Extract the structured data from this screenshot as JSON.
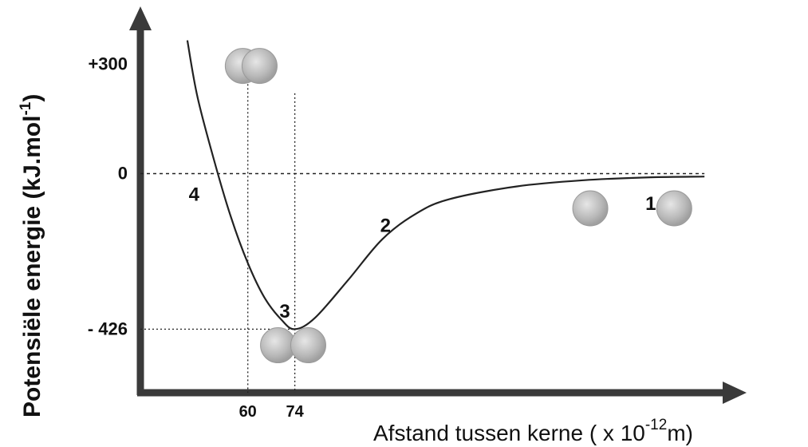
{
  "chart_data": {
    "type": "line",
    "ylabel_main": "Potensiële   energie (kJ.mol",
    "ylabel_sup": "-1",
    "ylabel_end": ")",
    "xlabel_main": "Afstand tussen kerne ( x 10",
    "xlabel_sup": "-12",
    "xlabel_end": "m)",
    "y_ticks": [
      "+300",
      "0",
      "- 426"
    ],
    "y_tick_values": [
      300,
      0,
      -426
    ],
    "x_ticks": [
      "60",
      "74"
    ],
    "x_tick_values": [
      60,
      74
    ],
    "ylim": [
      -600,
      410
    ],
    "xlim": [
      28,
      200
    ],
    "curve": {
      "x": [
        42,
        45,
        50,
        55,
        60,
        65,
        70,
        74,
        80,
        90,
        100,
        110,
        120,
        140,
        160,
        180,
        196
      ],
      "y": [
        365,
        210,
        35,
        -120,
        -245,
        -340,
        -400,
        -426,
        -395,
        -290,
        -180,
        -110,
        -70,
        -35,
        -18,
        -10,
        -8
      ]
    },
    "reference_lines": {
      "zero_line_x_end": 196,
      "min_y": -426,
      "min_x": 74,
      "x60_to_y": 300
    },
    "points": [
      {
        "label": "1",
        "x": 180,
        "y": -80
      },
      {
        "label": "2",
        "x": 101,
        "y": -140
      },
      {
        "label": "3",
        "x": 71,
        "y": -375
      },
      {
        "label": "4",
        "x": 44,
        "y": -55
      }
    ],
    "molecules": [
      {
        "name": "molecule-overlapping",
        "x1": 58.5,
        "x2": 63.5,
        "y": 295
      },
      {
        "name": "molecule-bonded",
        "x1": 69,
        "x2": 78,
        "y": -470
      },
      {
        "name": "molecule-separated",
        "x1": 162,
        "x2": 187,
        "y": -95
      }
    ],
    "colors": {
      "axis": "#333333",
      "curve": "#222222",
      "atom_fill": "#b8b8b8",
      "atom_edge": "#9a9a9a"
    }
  }
}
